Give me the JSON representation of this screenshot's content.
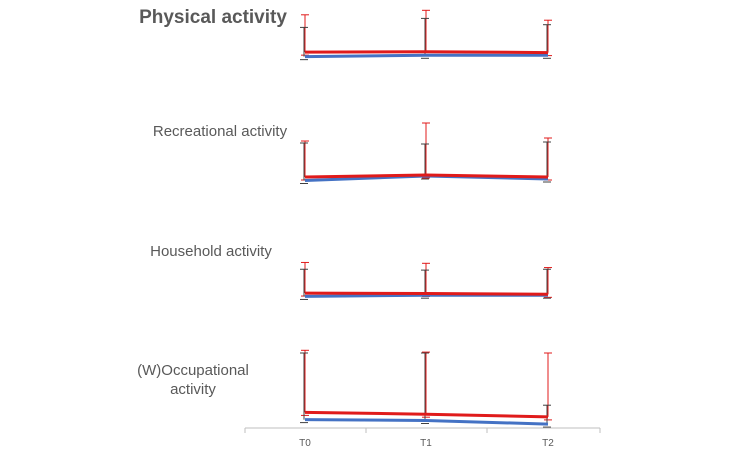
{
  "chart_data": {
    "type": "line",
    "categories": [
      "T0",
      "T1",
      "T2"
    ],
    "colors": {
      "red": "#e01b1b",
      "blue": "#4472c4",
      "errorbar_dark": "#404040",
      "axis": "#bfbfbf"
    },
    "panels": [
      {
        "title": "Physical activity",
        "ylim": [
          0,
          60
        ],
        "series": [
          {
            "name": "red",
            "color": "#e01b1b",
            "values": [
              6.5,
              7.0,
              6.0
            ],
            "err_upper": [
              48,
              53,
              42
            ]
          },
          {
            "name": "blue",
            "color": "#4472c4",
            "values": [
              1.5,
              3.0,
              3.0
            ],
            "err_upper": [
              34,
              44,
              37
            ]
          }
        ]
      },
      {
        "title": "Recreational activity",
        "ylim": [
          0,
          60
        ],
        "series": [
          {
            "name": "red",
            "color": "#e01b1b",
            "values": [
              4.0,
              6.0,
              4.0
            ],
            "err_upper": [
              40,
              58,
              43
            ]
          },
          {
            "name": "blue",
            "color": "#4472c4",
            "values": [
              0.5,
              5.0,
              2.0
            ],
            "err_upper": [
              38,
              37,
              39
            ]
          }
        ]
      },
      {
        "title": "Household activity",
        "ylim": [
          0,
          60
        ],
        "series": [
          {
            "name": "red",
            "color": "#e01b1b",
            "values": [
              7.0,
              6.5,
              5.5
            ],
            "err_upper": [
              43,
              42,
              37
            ]
          },
          {
            "name": "blue",
            "color": "#4472c4",
            "values": [
              3.0,
              4.5,
              4.5
            ],
            "err_upper": [
              35,
              34,
              35
            ]
          }
        ]
      },
      {
        "title": "(W)Occupational activity",
        "title_lines": [
          "(W)Occupational",
          "activity"
        ],
        "ylim": [
          0,
          90
        ],
        "series": [
          {
            "name": "red",
            "color": "#e01b1b",
            "values": [
              14,
              12,
              9
            ],
            "err_upper": [
              83,
              81,
              80
            ]
          },
          {
            "name": "blue",
            "color": "#4472c4",
            "values": [
              6,
              5,
              1
            ],
            "err_upper": [
              80,
              80,
              22
            ]
          }
        ]
      }
    ]
  }
}
